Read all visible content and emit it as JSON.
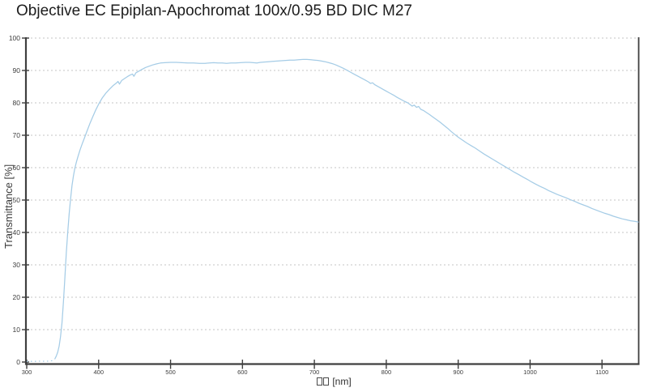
{
  "title": "Objective EC Epiplan-Apochromat 100x/0.95 BD DIC M27",
  "colors": {
    "curve": "#a5cce6",
    "axis": "#3f3f3f",
    "grid": "#c6c6c6",
    "tick_text": "#3d3d3d",
    "title_text": "#1d1d1d",
    "background": "#ffffff"
  },
  "chart_data": {
    "type": "line",
    "title": "Objective EC Epiplan-Apochromat 100x/0.95 BD DIC M27",
    "ylabel": "Transmittance [%]",
    "xlabel_text": "[nm]",
    "xlabel_missing_glyph_boxes": 2,
    "legend": "none",
    "grid": "horizontal-dashed",
    "xlim": [
      300,
      1151
    ],
    "ylim": [
      0,
      100
    ],
    "x_ticks": [
      300,
      400,
      500,
      600,
      700,
      800,
      900,
      1000,
      1100
    ],
    "y_ticks": [
      0,
      10,
      20,
      30,
      40,
      50,
      60,
      70,
      80,
      90,
      100
    ],
    "dotted_below_nm": 339,
    "series": [
      {
        "name": "Transmittance",
        "points": [
          [
            300,
            0.2
          ],
          [
            308,
            0.2
          ],
          [
            314,
            0.2
          ],
          [
            320,
            0.3
          ],
          [
            326,
            0.2
          ],
          [
            331,
            0.3
          ],
          [
            335,
            0.4
          ],
          [
            339,
            0.9
          ],
          [
            341,
            1.8
          ],
          [
            343,
            3.0
          ],
          [
            345,
            4.9
          ],
          [
            347,
            7.8
          ],
          [
            349,
            12.0
          ],
          [
            351,
            18.5
          ],
          [
            353,
            26.0
          ],
          [
            355,
            33.5
          ],
          [
            357,
            40.0
          ],
          [
            359,
            45.8
          ],
          [
            361,
            50.5
          ],
          [
            363,
            54.5
          ],
          [
            365,
            57.5
          ],
          [
            367,
            59.9
          ],
          [
            369,
            61.7
          ],
          [
            371,
            63.2
          ],
          [
            374,
            65.4
          ],
          [
            377,
            67.3
          ],
          [
            380,
            69.0
          ],
          [
            384,
            71.4
          ],
          [
            388,
            73.7
          ],
          [
            392,
            75.8
          ],
          [
            396,
            77.8
          ],
          [
            400,
            79.6
          ],
          [
            405,
            81.5
          ],
          [
            410,
            83.0
          ],
          [
            415,
            84.2
          ],
          [
            420,
            85.3
          ],
          [
            424,
            86.0
          ],
          [
            427,
            86.6
          ],
          [
            429,
            85.8
          ],
          [
            432,
            86.9
          ],
          [
            436,
            87.5
          ],
          [
            440,
            88.1
          ],
          [
            444,
            88.6
          ],
          [
            447,
            88.9
          ],
          [
            449,
            88.2
          ],
          [
            452,
            89.3
          ],
          [
            456,
            89.8
          ],
          [
            460,
            90.3
          ],
          [
            465,
            90.9
          ],
          [
            470,
            91.3
          ],
          [
            475,
            91.7
          ],
          [
            480,
            92.0
          ],
          [
            486,
            92.3
          ],
          [
            492,
            92.4
          ],
          [
            500,
            92.5
          ],
          [
            508,
            92.5
          ],
          [
            516,
            92.4
          ],
          [
            524,
            92.3
          ],
          [
            532,
            92.3
          ],
          [
            540,
            92.2
          ],
          [
            548,
            92.2
          ],
          [
            554,
            92.3
          ],
          [
            560,
            92.4
          ],
          [
            566,
            92.3
          ],
          [
            572,
            92.3
          ],
          [
            578,
            92.2
          ],
          [
            584,
            92.3
          ],
          [
            590,
            92.3
          ],
          [
            597,
            92.4
          ],
          [
            604,
            92.5
          ],
          [
            610,
            92.5
          ],
          [
            615,
            92.4
          ],
          [
            620,
            92.3
          ],
          [
            625,
            92.5
          ],
          [
            630,
            92.6
          ],
          [
            636,
            92.7
          ],
          [
            642,
            92.8
          ],
          [
            648,
            92.9
          ],
          [
            654,
            93.0
          ],
          [
            660,
            93.1
          ],
          [
            666,
            93.2
          ],
          [
            672,
            93.2
          ],
          [
            678,
            93.3
          ],
          [
            684,
            93.4
          ],
          [
            690,
            93.4
          ],
          [
            695,
            93.3
          ],
          [
            700,
            93.2
          ],
          [
            705,
            93.1
          ],
          [
            710,
            92.9
          ],
          [
            715,
            92.7
          ],
          [
            720,
            92.4
          ],
          [
            725,
            92.1
          ],
          [
            730,
            91.7
          ],
          [
            735,
            91.2
          ],
          [
            740,
            90.7
          ],
          [
            745,
            90.1
          ],
          [
            750,
            89.5
          ],
          [
            755,
            88.9
          ],
          [
            760,
            88.3
          ],
          [
            765,
            87.7
          ],
          [
            770,
            87.1
          ],
          [
            775,
            86.5
          ],
          [
            778,
            86.0
          ],
          [
            781,
            86.2
          ],
          [
            784,
            85.6
          ],
          [
            788,
            85.1
          ],
          [
            792,
            84.6
          ],
          [
            796,
            84.1
          ],
          [
            800,
            83.6
          ],
          [
            805,
            83.0
          ],
          [
            810,
            82.4
          ],
          [
            815,
            81.7
          ],
          [
            820,
            81.1
          ],
          [
            825,
            80.5
          ],
          [
            830,
            80.0
          ],
          [
            833,
            79.5
          ],
          [
            836,
            79.0
          ],
          [
            839,
            79.3
          ],
          [
            842,
            78.6
          ],
          [
            845,
            78.9
          ],
          [
            848,
            78.0
          ],
          [
            852,
            77.6
          ],
          [
            856,
            77.0
          ],
          [
            860,
            76.4
          ],
          [
            865,
            75.6
          ],
          [
            870,
            74.8
          ],
          [
            875,
            74.0
          ],
          [
            880,
            73.1
          ],
          [
            885,
            72.2
          ],
          [
            890,
            71.2
          ],
          [
            895,
            70.3
          ],
          [
            900,
            69.4
          ],
          [
            906,
            68.5
          ],
          [
            912,
            67.6
          ],
          [
            918,
            66.8
          ],
          [
            924,
            66.0
          ],
          [
            930,
            65.1
          ],
          [
            936,
            64.2
          ],
          [
            942,
            63.4
          ],
          [
            948,
            62.6
          ],
          [
            954,
            61.8
          ],
          [
            960,
            61.0
          ],
          [
            966,
            60.2
          ],
          [
            972,
            59.4
          ],
          [
            978,
            58.6
          ],
          [
            984,
            57.9
          ],
          [
            990,
            57.1
          ],
          [
            996,
            56.4
          ],
          [
            1002,
            55.6
          ],
          [
            1008,
            54.9
          ],
          [
            1014,
            54.2
          ],
          [
            1020,
            53.6
          ],
          [
            1026,
            52.9
          ],
          [
            1032,
            52.3
          ],
          [
            1038,
            51.7
          ],
          [
            1044,
            51.2
          ],
          [
            1050,
            50.7
          ],
          [
            1056,
            50.1
          ],
          [
            1062,
            49.6
          ],
          [
            1068,
            49.0
          ],
          [
            1074,
            48.5
          ],
          [
            1080,
            48.0
          ],
          [
            1086,
            47.4
          ],
          [
            1092,
            46.9
          ],
          [
            1098,
            46.4
          ],
          [
            1104,
            45.9
          ],
          [
            1110,
            45.5
          ],
          [
            1116,
            45.0
          ],
          [
            1122,
            44.6
          ],
          [
            1128,
            44.2
          ],
          [
            1134,
            43.9
          ],
          [
            1140,
            43.6
          ],
          [
            1146,
            43.4
          ],
          [
            1151,
            43.2
          ]
        ]
      }
    ]
  }
}
